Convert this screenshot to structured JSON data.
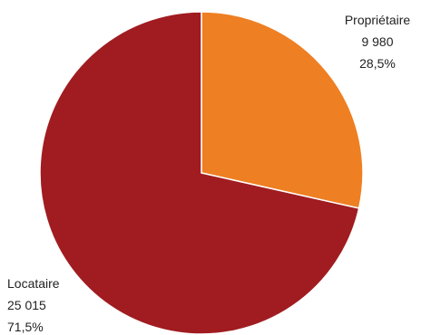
{
  "chart_data": {
    "type": "pie",
    "slices": [
      {
        "label": "Propriétaire",
        "value": 9980,
        "value_text": "9 980",
        "percent_text": "28,5%",
        "color": "#ee7f22"
      },
      {
        "label": "Locataire",
        "value": 25015,
        "value_text": "25 015",
        "percent_text": "71,5%",
        "color": "#a01c20"
      }
    ],
    "start_angle_deg": 0,
    "direction": "clockwise",
    "legend": "none"
  }
}
